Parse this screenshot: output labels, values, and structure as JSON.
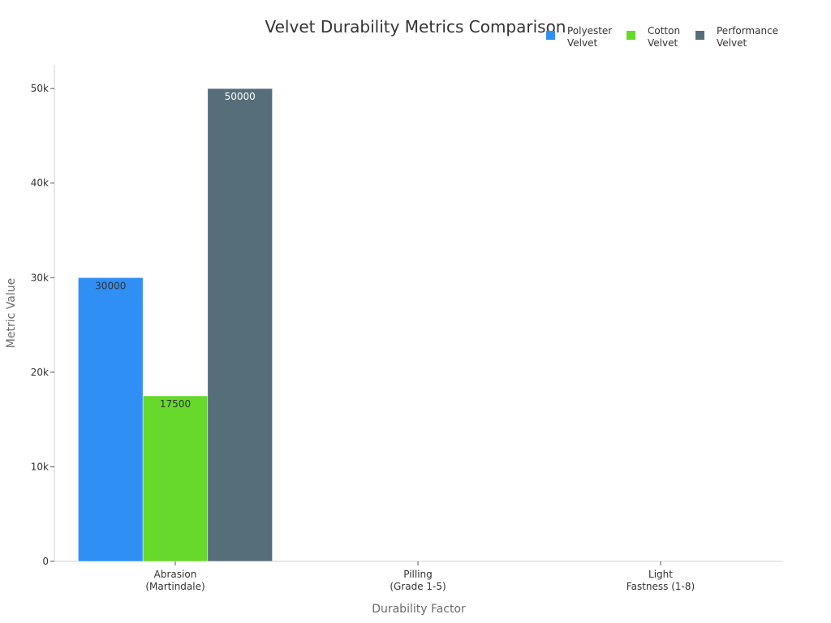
{
  "chart_data": {
    "type": "bar",
    "title": "Velvet Durability Metrics Comparison",
    "xlabel": "Durability Factor",
    "ylabel": "Metric Value",
    "categories": [
      [
        "Abrasion",
        "(Martindale)"
      ],
      [
        "Pilling",
        "(Grade 1-5)"
      ],
      [
        "Light",
        "Fastness (1-8)"
      ]
    ],
    "series": [
      {
        "name": [
          "Polyester",
          "Velvet"
        ],
        "color": "#2f8ff5",
        "label_color": "#333333",
        "values": [
          30000,
          null,
          null
        ]
      },
      {
        "name": [
          "Cotton",
          "Velvet"
        ],
        "color": "#66d92a",
        "label_color": "#333333",
        "values": [
          17500,
          null,
          null
        ]
      },
      {
        "name": [
          "Performance",
          "Velvet"
        ],
        "color": "#566e79",
        "label_color": "#ffffff",
        "values": [
          50000,
          null,
          null
        ]
      }
    ],
    "ylim": [
      0,
      52500
    ],
    "yticks": [
      0,
      10000,
      20000,
      30000,
      40000,
      50000
    ],
    "ytick_labels": [
      "0",
      "10k",
      "20k",
      "30k",
      "40k",
      "50k"
    ],
    "grid": false,
    "legend": "top-right"
  }
}
